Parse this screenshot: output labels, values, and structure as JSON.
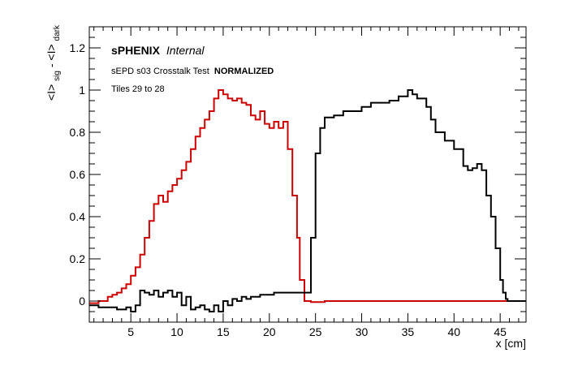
{
  "chart_data": {
    "type": "line",
    "style": "histogram-step",
    "xlabel": "x [cm]",
    "ylabel_parts": {
      "base1": "<I>",
      "sub1": "sig",
      "sep": " - ",
      "base2": "<I>",
      "sub2": "dark"
    },
    "xlim": [
      0.5,
      47.8
    ],
    "ylim": [
      -0.1,
      1.3
    ],
    "xticks": [
      5,
      10,
      15,
      20,
      25,
      30,
      35,
      40,
      45
    ],
    "yticks": [
      0,
      0.2,
      0.4,
      0.6,
      0.8,
      1,
      1.2
    ],
    "ytick_labels": [
      "0",
      "0.2",
      "0.4",
      "0.6",
      "0.8",
      "1",
      "1.2"
    ],
    "grid": false,
    "annotations": {
      "brand": "sPHENIX",
      "brand_status": "Internal",
      "test_title": "sEPD s03 Crosstalk Test",
      "test_mode": "NORMALIZED",
      "tiles": "Tiles 29 to 28"
    },
    "series": [
      {
        "color": "#cc0000",
        "x": [
          0.5,
          1.5,
          2.5,
          3.0,
          3.5,
          4.0,
          4.5,
          5.0,
          5.5,
          6.0,
          6.5,
          7.0,
          7.5,
          8.0,
          8.5,
          9.0,
          9.5,
          10.0,
          10.5,
          11.0,
          11.5,
          12.0,
          12.5,
          13.0,
          13.5,
          14.0,
          14.5,
          15.0,
          15.5,
          16.0,
          16.5,
          17.0,
          17.5,
          18.0,
          18.5,
          19.0,
          19.5,
          20.0,
          20.5,
          21.0,
          21.5,
          22.0,
          22.5,
          23.0,
          23.3,
          23.8,
          24.5,
          26,
          28,
          30,
          32,
          34,
          36,
          38,
          40,
          42,
          44,
          46,
          47.8
        ],
        "y": [
          -0.01,
          0.0,
          0.02,
          0.03,
          0.04,
          0.06,
          0.08,
          0.12,
          0.16,
          0.22,
          0.3,
          0.38,
          0.46,
          0.5,
          0.47,
          0.52,
          0.55,
          0.58,
          0.62,
          0.66,
          0.72,
          0.78,
          0.82,
          0.86,
          0.9,
          0.96,
          1.0,
          0.98,
          0.96,
          0.95,
          0.96,
          0.94,
          0.93,
          0.88,
          0.86,
          0.9,
          0.84,
          0.82,
          0.85,
          0.82,
          0.85,
          0.72,
          0.5,
          0.3,
          0.1,
          0.0,
          -0.005,
          0.0,
          0.0,
          0.0,
          0.0,
          0.0,
          0.0,
          0.0,
          0.0,
          0.0,
          0.0,
          0.0,
          0.0
        ]
      },
      {
        "color": "#000000",
        "x": [
          0.5,
          1.5,
          2.5,
          3.5,
          4.5,
          5.0,
          5.5,
          6.0,
          6.5,
          7.0,
          7.5,
          8.0,
          8.5,
          9.0,
          9.5,
          10.0,
          10.5,
          11.0,
          11.5,
          12.0,
          12.5,
          13.0,
          13.5,
          14.0,
          14.5,
          15.0,
          15.5,
          16.0,
          16.5,
          17.0,
          17.5,
          18.0,
          18.5,
          19.0,
          19.5,
          20.0,
          20.5,
          21.0,
          21.5,
          22.0,
          22.5,
          23.0,
          23.5,
          24.0,
          24.5,
          25.0,
          25.5,
          26.0,
          27.0,
          28.0,
          29.0,
          30.0,
          31.0,
          32.0,
          33.0,
          34.0,
          35.0,
          35.5,
          36.0,
          37.0,
          37.5,
          38.0,
          39.0,
          40.0,
          41.0,
          41.5,
          42.0,
          42.5,
          43.0,
          43.5,
          44.0,
          44.5,
          45.0,
          45.3,
          45.6,
          45.8,
          47.8
        ],
        "y": [
          -0.02,
          -0.03,
          -0.03,
          -0.04,
          -0.03,
          -0.05,
          -0.02,
          0.05,
          0.04,
          0.03,
          0.05,
          0.02,
          0.04,
          0.05,
          0.02,
          0.04,
          -0.02,
          0.02,
          -0.04,
          -0.03,
          -0.02,
          -0.04,
          -0.05,
          -0.02,
          -0.05,
          0.0,
          -0.02,
          0.01,
          0.0,
          0.02,
          0.01,
          0.02,
          0.02,
          0.03,
          0.03,
          0.03,
          0.04,
          0.04,
          0.04,
          0.04,
          0.04,
          0.04,
          0.04,
          0.04,
          0.3,
          0.7,
          0.82,
          0.87,
          0.88,
          0.9,
          0.9,
          0.92,
          0.94,
          0.94,
          0.95,
          0.97,
          1.0,
          0.98,
          0.96,
          0.92,
          0.86,
          0.8,
          0.76,
          0.72,
          0.64,
          0.62,
          0.63,
          0.65,
          0.62,
          0.5,
          0.4,
          0.25,
          0.1,
          0.04,
          0.01,
          0.0,
          0.0
        ]
      }
    ]
  }
}
